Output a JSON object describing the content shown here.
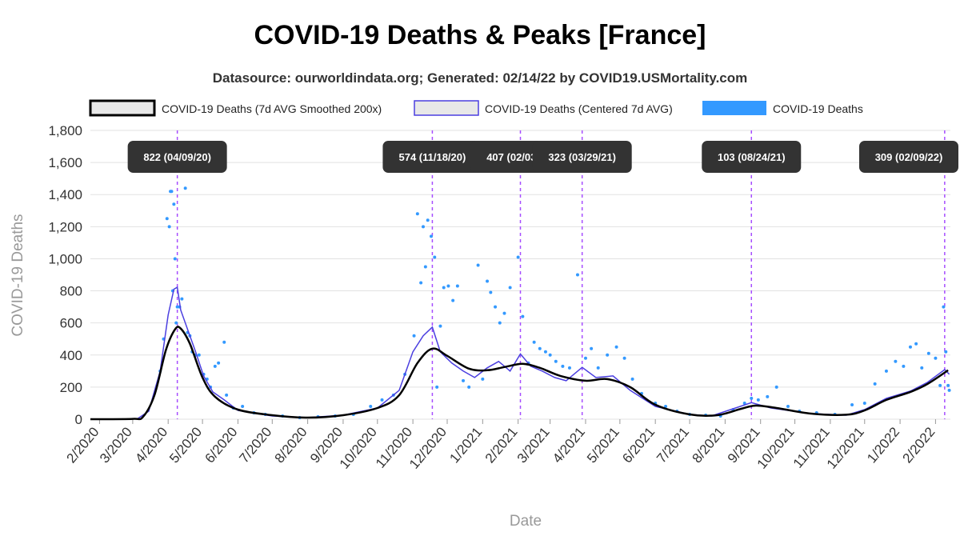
{
  "chart_data": {
    "type": "line",
    "title": "COVID-19 Deaths & Peaks [France]",
    "subtitle": "Datasource: ourworldindata.org; Generated: 02/14/22 by COVID19.USMortality.com",
    "xlabel": "Date",
    "ylabel": "COVID-19 Deaths",
    "ylim": [
      0,
      1800
    ],
    "yticks": [
      0,
      200,
      400,
      600,
      800,
      1000,
      1200,
      1400,
      1600,
      1800
    ],
    "ytick_labels": [
      "0",
      "200",
      "400",
      "600",
      "800",
      "1,000",
      "1,200",
      "1,400",
      "1,600",
      "1,800"
    ],
    "xlim": [
      "2020-01-24",
      "2022-02-14"
    ],
    "xticks": [
      "2020-02-01",
      "2020-03-01",
      "2020-04-01",
      "2020-05-01",
      "2020-06-01",
      "2020-07-01",
      "2020-08-01",
      "2020-09-01",
      "2020-10-01",
      "2020-11-01",
      "2020-12-01",
      "2021-01-01",
      "2021-02-01",
      "2021-03-01",
      "2021-04-01",
      "2021-05-01",
      "2021-06-01",
      "2021-07-01",
      "2021-08-01",
      "2021-09-01",
      "2021-10-01",
      "2021-11-01",
      "2021-12-01",
      "2022-01-01",
      "2022-02-01"
    ],
    "xtick_labels": [
      "2/2020",
      "3/2020",
      "4/2020",
      "5/2020",
      "6/2020",
      "7/2020",
      "8/2020",
      "9/2020",
      "10/2020",
      "11/2020",
      "12/2020",
      "1/2021",
      "2/2021",
      "3/2021",
      "4/2021",
      "5/2021",
      "6/2021",
      "7/2021",
      "8/2021",
      "9/2021",
      "10/2021",
      "11/2021",
      "12/2021",
      "1/2022",
      "2/2022"
    ],
    "grid": true,
    "legend_position": "top",
    "colors": {
      "smoothed": "#000000",
      "centered": "#4b3fe0",
      "daily": "#3399ff",
      "peak_line": "#a64dff",
      "peak_label_bg": "#333333"
    },
    "series": [
      {
        "name": "COVID-19 Deaths (7d AVG Smoothed 200x)",
        "points": [
          [
            "2020-01-24",
            0
          ],
          [
            "2020-03-01",
            2
          ],
          [
            "2020-03-10",
            15
          ],
          [
            "2020-03-20",
            150
          ],
          [
            "2020-03-30",
            430
          ],
          [
            "2020-04-07",
            560
          ],
          [
            "2020-04-12",
            565
          ],
          [
            "2020-04-20",
            470
          ],
          [
            "2020-05-01",
            260
          ],
          [
            "2020-05-12",
            140
          ],
          [
            "2020-06-01",
            60
          ],
          [
            "2020-07-01",
            25
          ],
          [
            "2020-08-01",
            10
          ],
          [
            "2020-09-01",
            25
          ],
          [
            "2020-10-01",
            70
          ],
          [
            "2020-10-20",
            150
          ],
          [
            "2020-11-05",
            350
          ],
          [
            "2020-11-18",
            440
          ],
          [
            "2020-12-01",
            395
          ],
          [
            "2020-12-20",
            315
          ],
          [
            "2021-01-05",
            305
          ],
          [
            "2021-01-20",
            325
          ],
          [
            "2021-02-05",
            345
          ],
          [
            "2021-02-20",
            320
          ],
          [
            "2021-03-10",
            270
          ],
          [
            "2021-04-01",
            240
          ],
          [
            "2021-04-20",
            250
          ],
          [
            "2021-05-10",
            200
          ],
          [
            "2021-06-01",
            90
          ],
          [
            "2021-07-01",
            30
          ],
          [
            "2021-07-25",
            25
          ],
          [
            "2021-08-15",
            65
          ],
          [
            "2021-08-28",
            85
          ],
          [
            "2021-09-15",
            70
          ],
          [
            "2021-10-15",
            35
          ],
          [
            "2021-11-15",
            28
          ],
          [
            "2021-12-01",
            55
          ],
          [
            "2021-12-20",
            120
          ],
          [
            "2022-01-10",
            170
          ],
          [
            "2022-01-25",
            220
          ],
          [
            "2022-02-12",
            305
          ]
        ]
      },
      {
        "name": "COVID-19 Deaths (Centered 7d AVG)",
        "points": [
          [
            "2020-01-24",
            0
          ],
          [
            "2020-03-05",
            2
          ],
          [
            "2020-03-15",
            50
          ],
          [
            "2020-03-25",
            300
          ],
          [
            "2020-04-01",
            650
          ],
          [
            "2020-04-06",
            810
          ],
          [
            "2020-04-09",
            822
          ],
          [
            "2020-04-12",
            680
          ],
          [
            "2020-04-18",
            560
          ],
          [
            "2020-04-25",
            420
          ],
          [
            "2020-05-02",
            270
          ],
          [
            "2020-05-10",
            170
          ],
          [
            "2020-05-20",
            120
          ],
          [
            "2020-06-01",
            55
          ],
          [
            "2020-07-01",
            20
          ],
          [
            "2020-08-01",
            10
          ],
          [
            "2020-09-01",
            25
          ],
          [
            "2020-10-01",
            70
          ],
          [
            "2020-10-20",
            180
          ],
          [
            "2020-11-01",
            420
          ],
          [
            "2020-11-10",
            520
          ],
          [
            "2020-11-18",
            574
          ],
          [
            "2020-11-25",
            420
          ],
          [
            "2020-12-05",
            350
          ],
          [
            "2020-12-15",
            300
          ],
          [
            "2020-12-25",
            260
          ],
          [
            "2021-01-05",
            320
          ],
          [
            "2021-01-15",
            360
          ],
          [
            "2021-01-25",
            300
          ],
          [
            "2021-02-03",
            407
          ],
          [
            "2021-02-12",
            330
          ],
          [
            "2021-02-22",
            300
          ],
          [
            "2021-03-05",
            260
          ],
          [
            "2021-03-15",
            240
          ],
          [
            "2021-03-29",
            323
          ],
          [
            "2021-04-10",
            260
          ],
          [
            "2021-04-25",
            270
          ],
          [
            "2021-05-10",
            180
          ],
          [
            "2021-06-01",
            80
          ],
          [
            "2021-07-01",
            30
          ],
          [
            "2021-07-20",
            20
          ],
          [
            "2021-08-10",
            70
          ],
          [
            "2021-08-24",
            103
          ],
          [
            "2021-09-10",
            70
          ],
          [
            "2021-10-15",
            35
          ],
          [
            "2021-11-15",
            25
          ],
          [
            "2021-12-01",
            60
          ],
          [
            "2021-12-20",
            130
          ],
          [
            "2022-01-10",
            175
          ],
          [
            "2022-01-25",
            230
          ],
          [
            "2022-02-09",
            309
          ],
          [
            "2022-02-13",
            280
          ]
        ]
      },
      {
        "name": "COVID-19 Deaths",
        "points": [
          [
            "2020-03-25",
            300
          ],
          [
            "2020-03-28",
            500
          ],
          [
            "2020-03-31",
            1250
          ],
          [
            "2020-04-02",
            1200
          ],
          [
            "2020-04-03",
            1420
          ],
          [
            "2020-04-04",
            1420
          ],
          [
            "2020-04-05",
            800
          ],
          [
            "2020-04-06",
            1340
          ],
          [
            "2020-04-07",
            1000
          ],
          [
            "2020-04-08",
            600
          ],
          [
            "2020-04-09",
            700
          ],
          [
            "2020-04-11",
            700
          ],
          [
            "2020-04-13",
            750
          ],
          [
            "2020-04-16",
            1440
          ],
          [
            "2020-04-18",
            540
          ],
          [
            "2020-04-20",
            520
          ],
          [
            "2020-04-22",
            420
          ],
          [
            "2020-04-25",
            400
          ],
          [
            "2020-04-28",
            400
          ],
          [
            "2020-05-02",
            280
          ],
          [
            "2020-05-05",
            250
          ],
          [
            "2020-05-08",
            200
          ],
          [
            "2020-05-12",
            330
          ],
          [
            "2020-05-15",
            350
          ],
          [
            "2020-05-20",
            480
          ],
          [
            "2020-05-22",
            150
          ],
          [
            "2020-05-28",
            70
          ],
          [
            "2020-06-05",
            80
          ],
          [
            "2020-06-15",
            40
          ],
          [
            "2020-06-25",
            30
          ],
          [
            "2020-07-10",
            20
          ],
          [
            "2020-07-25",
            10
          ],
          [
            "2020-08-10",
            15
          ],
          [
            "2020-08-25",
            20
          ],
          [
            "2020-09-10",
            30
          ],
          [
            "2020-09-25",
            80
          ],
          [
            "2020-10-05",
            120
          ],
          [
            "2020-10-15",
            150
          ],
          [
            "2020-10-25",
            280
          ],
          [
            "2020-11-02",
            520
          ],
          [
            "2020-11-05",
            1280
          ],
          [
            "2020-11-08",
            850
          ],
          [
            "2020-11-10",
            1200
          ],
          [
            "2020-11-12",
            950
          ],
          [
            "2020-11-14",
            1240
          ],
          [
            "2020-11-17",
            1140
          ],
          [
            "2020-11-20",
            1010
          ],
          [
            "2020-11-22",
            200
          ],
          [
            "2020-11-25",
            580
          ],
          [
            "2020-11-28",
            820
          ],
          [
            "2020-12-02",
            830
          ],
          [
            "2020-12-06",
            740
          ],
          [
            "2020-12-10",
            830
          ],
          [
            "2020-12-15",
            240
          ],
          [
            "2020-12-20",
            200
          ],
          [
            "2020-12-28",
            960
          ],
          [
            "2021-01-01",
            250
          ],
          [
            "2021-01-05",
            860
          ],
          [
            "2021-01-08",
            790
          ],
          [
            "2021-01-12",
            700
          ],
          [
            "2021-01-16",
            600
          ],
          [
            "2021-01-20",
            660
          ],
          [
            "2021-01-25",
            820
          ],
          [
            "2021-02-01",
            1010
          ],
          [
            "2021-02-05",
            640
          ],
          [
            "2021-02-10",
            350
          ],
          [
            "2021-02-15",
            480
          ],
          [
            "2021-02-20",
            440
          ],
          [
            "2021-02-25",
            420
          ],
          [
            "2021-03-01",
            400
          ],
          [
            "2021-03-06",
            360
          ],
          [
            "2021-03-12",
            330
          ],
          [
            "2021-03-18",
            320
          ],
          [
            "2021-03-25",
            900
          ],
          [
            "2021-04-01",
            380
          ],
          [
            "2021-04-06",
            440
          ],
          [
            "2021-04-12",
            320
          ],
          [
            "2021-04-20",
            400
          ],
          [
            "2021-04-28",
            450
          ],
          [
            "2021-05-05",
            380
          ],
          [
            "2021-05-12",
            250
          ],
          [
            "2021-05-20",
            160
          ],
          [
            "2021-06-01",
            100
          ],
          [
            "2021-06-10",
            80
          ],
          [
            "2021-06-20",
            50
          ],
          [
            "2021-07-01",
            30
          ],
          [
            "2021-07-15",
            25
          ],
          [
            "2021-07-28",
            20
          ],
          [
            "2021-08-08",
            60
          ],
          [
            "2021-08-18",
            100
          ],
          [
            "2021-08-24",
            130
          ],
          [
            "2021-08-30",
            120
          ],
          [
            "2021-09-07",
            140
          ],
          [
            "2021-09-15",
            200
          ],
          [
            "2021-09-25",
            80
          ],
          [
            "2021-10-05",
            50
          ],
          [
            "2021-10-20",
            40
          ],
          [
            "2021-11-05",
            30
          ],
          [
            "2021-11-20",
            90
          ],
          [
            "2021-12-01",
            100
          ],
          [
            "2021-12-10",
            220
          ],
          [
            "2021-12-20",
            300
          ],
          [
            "2021-12-28",
            360
          ],
          [
            "2022-01-04",
            330
          ],
          [
            "2022-01-10",
            450
          ],
          [
            "2022-01-15",
            470
          ],
          [
            "2022-01-20",
            320
          ],
          [
            "2022-01-26",
            410
          ],
          [
            "2022-02-01",
            380
          ],
          [
            "2022-02-05",
            210
          ],
          [
            "2022-02-08",
            700
          ],
          [
            "2022-02-10",
            420
          ],
          [
            "2022-02-12",
            210
          ],
          [
            "2022-02-13",
            180
          ]
        ]
      }
    ],
    "peaks": [
      {
        "date": "2020-04-09",
        "label": "822 (04/09/20)"
      },
      {
        "date": "2020-11-18",
        "label": "574 (11/18/20)"
      },
      {
        "date": "2021-02-03",
        "label": "407 (02/03/21)"
      },
      {
        "date": "2021-03-29",
        "label": "323 (03/29/21)"
      },
      {
        "date": "2021-08-24",
        "label": "103 (08/24/21)"
      },
      {
        "date": "2022-02-09",
        "label": "309 (02/09/22)"
      }
    ]
  }
}
